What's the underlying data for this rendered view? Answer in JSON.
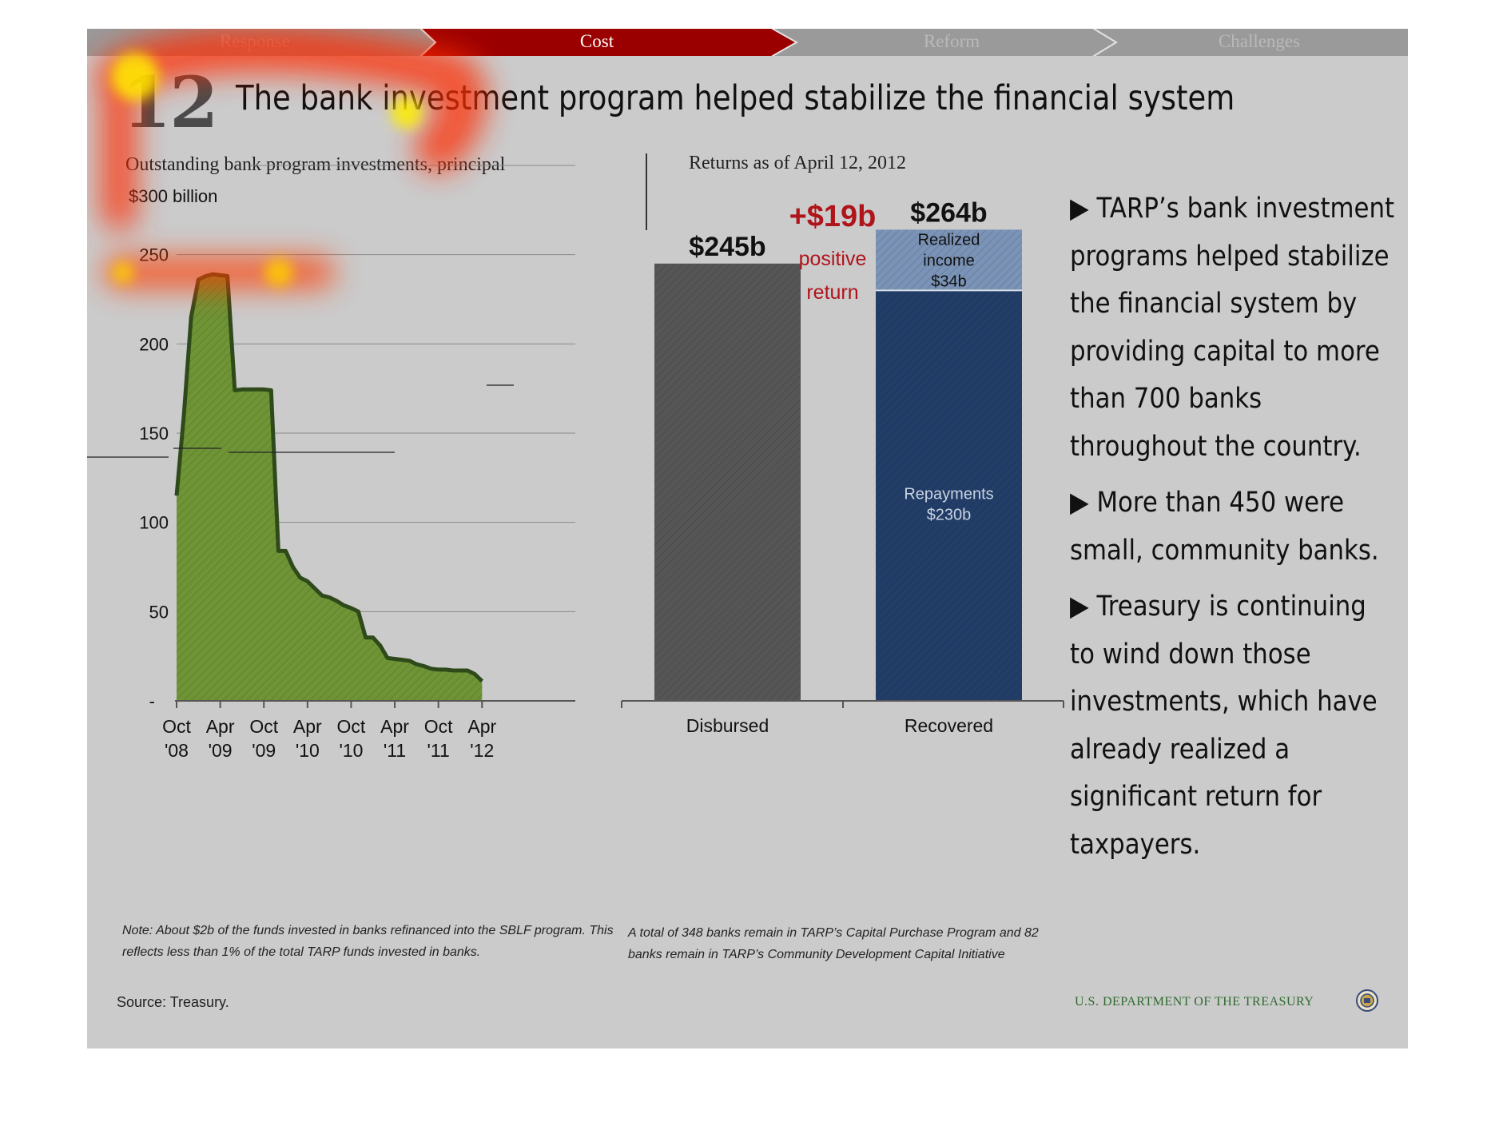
{
  "nav": {
    "tabs": [
      {
        "label": "Response",
        "active": false
      },
      {
        "label": "Cost",
        "active": true
      },
      {
        "label": "Reform",
        "active": false
      },
      {
        "label": "Challenges",
        "active": false
      }
    ],
    "active_color": "#9b0000",
    "inactive_color": "#9a9a9a"
  },
  "slide_number": "12",
  "title": {
    "full": "The bank investment program helped stabilize the financial system"
  },
  "left_chart_title": "Outstanding bank program investments, principal",
  "right_chart_title": "Returns as of April 12, 2012",
  "chart_data": [
    {
      "type": "area",
      "title": "Outstanding bank program investments, principal",
      "y_top_label": "$300 billion",
      "y_ticks": [
        "-",
        "50",
        "100",
        "150",
        "200",
        "250"
      ],
      "y_tick_values": [
        0,
        50,
        100,
        150,
        200,
        250
      ],
      "ylim": [
        0,
        300
      ],
      "x_tick_labels": [
        [
          "Oct",
          "'08"
        ],
        [
          "Apr",
          "'09"
        ],
        [
          "Oct",
          "'09"
        ],
        [
          "Apr",
          "'10"
        ],
        [
          "Oct",
          "'10"
        ],
        [
          "Apr",
          "'11"
        ],
        [
          "Oct",
          "'11"
        ],
        [
          "Apr",
          "'12"
        ]
      ],
      "x_tick_months": [
        0,
        6,
        12,
        18,
        24,
        30,
        36,
        42
      ],
      "x_range_months": [
        0,
        42.3
      ],
      "fill_color": "#6e9436",
      "line_color": "#2f4a1a",
      "points": [
        [
          0,
          115
        ],
        [
          1,
          160
        ],
        [
          2,
          215
        ],
        [
          3,
          236
        ],
        [
          4,
          238
        ],
        [
          5,
          239
        ],
        [
          6,
          238.5
        ],
        [
          7,
          238
        ],
        [
          8,
          174
        ],
        [
          9,
          174.5
        ],
        [
          10,
          174.5
        ],
        [
          11,
          174.5
        ],
        [
          12,
          174.5
        ],
        [
          13,
          174
        ],
        [
          14,
          84
        ],
        [
          15,
          84
        ],
        [
          16,
          75
        ],
        [
          17,
          69
        ],
        [
          18,
          67
        ],
        [
          19,
          63
        ],
        [
          20,
          59
        ],
        [
          21,
          58
        ],
        [
          22,
          56
        ],
        [
          23,
          53.5
        ],
        [
          24,
          52
        ],
        [
          25,
          50
        ],
        [
          26,
          35.5
        ],
        [
          27,
          35.5
        ],
        [
          28,
          31
        ],
        [
          29,
          24
        ],
        [
          30,
          23.5
        ],
        [
          31,
          23
        ],
        [
          32,
          22.5
        ],
        [
          33,
          20.5
        ],
        [
          34,
          19.5
        ],
        [
          35,
          18
        ],
        [
          36,
          17.5
        ],
        [
          37,
          17.5
        ],
        [
          38,
          17
        ],
        [
          39,
          17
        ],
        [
          40,
          17
        ],
        [
          41,
          15
        ],
        [
          42,
          11
        ]
      ]
    },
    {
      "type": "bar",
      "title": "Returns as of April 12, 2012",
      "categories": [
        "Disbursed",
        "Recovered"
      ],
      "ylim": [
        0,
        300
      ],
      "bars": [
        {
          "category": "Disbursed",
          "total_label": "$245b",
          "segments": [
            {
              "value": 245,
              "color": "#565656",
              "label": ""
            }
          ]
        },
        {
          "category": "Recovered",
          "total_label": "$264b",
          "segments": [
            {
              "value": 230,
              "color": "#223e68",
              "label_lines": [
                "Repayments",
                "$230b"
              ],
              "label_color": "#c9d3e2"
            },
            {
              "value": 34,
              "color": "#7a93b6",
              "label_lines": [
                "Realized",
                "income",
                "$34b"
              ],
              "label_color": "#111111"
            }
          ]
        }
      ],
      "annotation": {
        "value": "+$19b",
        "lines": [
          "positive",
          "return"
        ],
        "color": "#b0141b"
      }
    }
  ],
  "bullets": [
    "TARP’s bank investment programs helped stabilize the financial system by providing capital to more than 700 banks throughout the country.",
    "More than 450 were small, community banks.",
    "Treasury is continuing to wind down those investments, which have already realized a significant return for taxpayers."
  ],
  "notes": {
    "left": "Note: About $2b of the funds invested in banks refinanced into the SBLF program. This reflects less than 1% of the total TARP funds invested in banks.",
    "right": "A total of 348 banks remain in TARP’s Capital Purchase Program and 82 banks remain in TARP’s Community Development Capital Initiative"
  },
  "source": "Source: Treasury.",
  "footer": {
    "department": "U.S. DEPARTMENT OF THE TREASURY",
    "seal": "treasury-seal-icon"
  }
}
